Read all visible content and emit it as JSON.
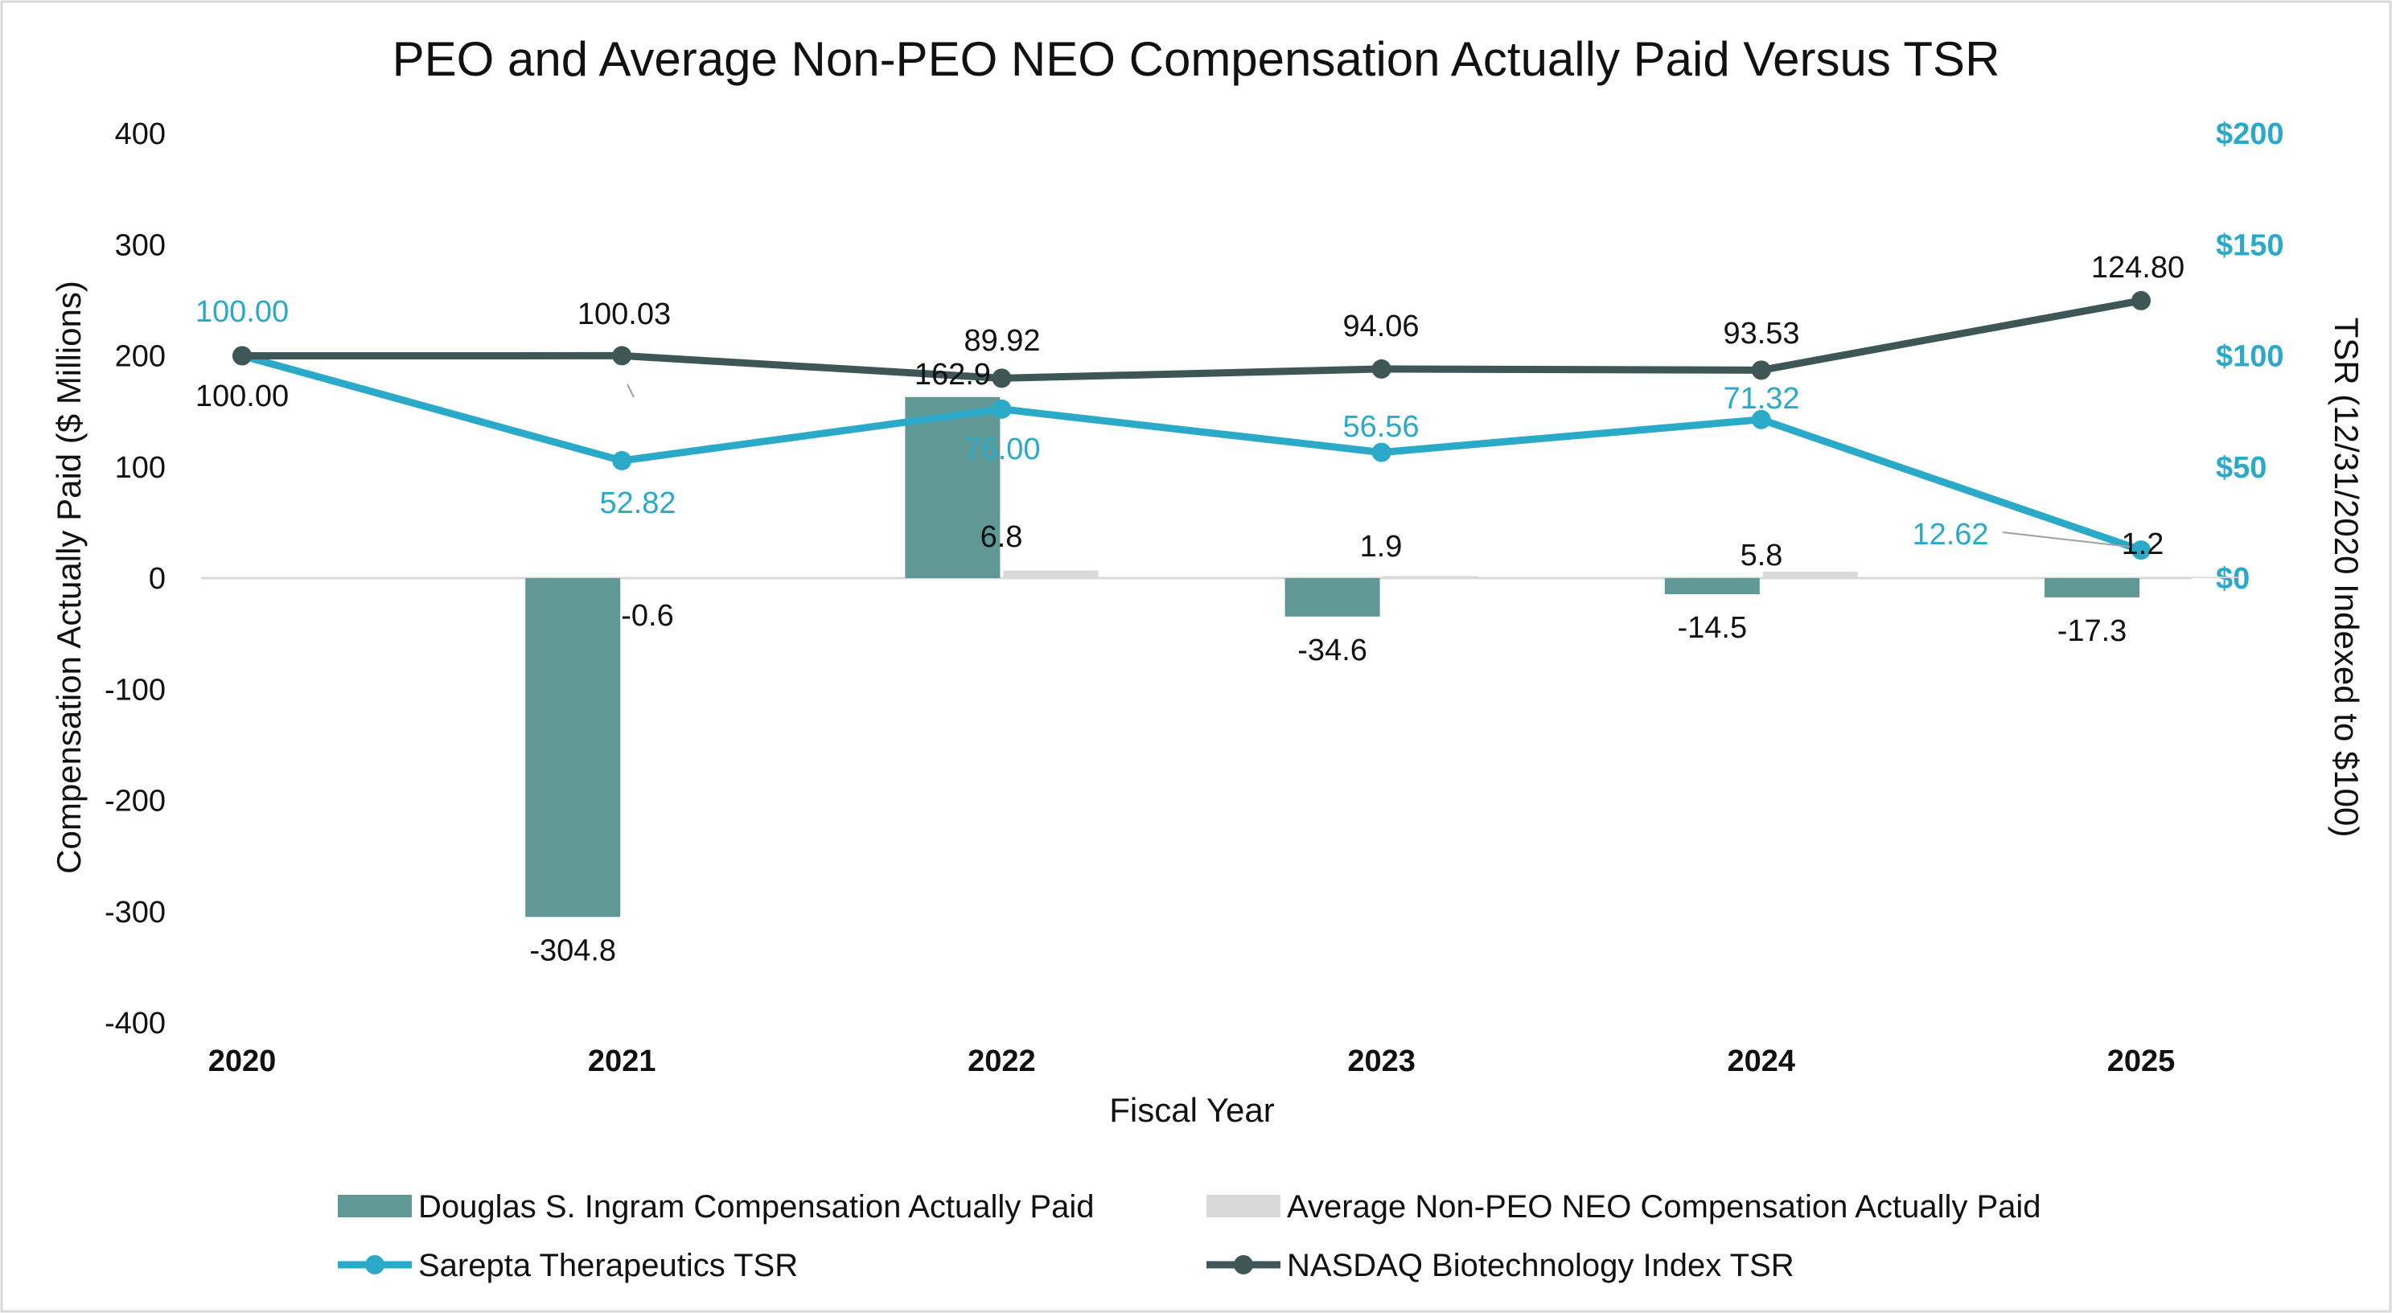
{
  "colors": {
    "peo_bar": "#5f9894",
    "neo_bar": "#d9d9d9",
    "sarepta_line": "#2aa9c8",
    "nasdaq_line": "#3e5656",
    "right_axis": "#2aa9c8",
    "frame": "#d9d9d9",
    "zero_line": "#d9d9d9"
  },
  "chart_data": {
    "type": "bar",
    "title": "PEO and Average Non-PEO NEO Compensation Actually Paid Versus TSR",
    "xlabel": "Fiscal Year",
    "ylabel": "Compensation Actually Paid ($ Millions)",
    "y2label": "TSR (12/31/2020 Indexed to $100)",
    "categories": [
      "2020",
      "2021",
      "2022",
      "2023",
      "2024",
      "2025"
    ],
    "ylim": [
      -400,
      400
    ],
    "yticks": [
      "400",
      "300",
      "200",
      "100",
      "0",
      "-100",
      "-200",
      "-300",
      "-400"
    ],
    "y2lim": [
      0,
      200
    ],
    "y2ticks": [
      "$200",
      "$150",
      "$100",
      "$50",
      "$0"
    ],
    "grid": false,
    "legend_position": "bottom",
    "series": [
      {
        "name": "Douglas S. Ingram Compensation Actually Paid",
        "type": "bar",
        "axis": "left",
        "values": [
          null,
          -304.8,
          162.9,
          -34.6,
          -14.5,
          -17.3
        ],
        "labels": [
          "",
          "-304.8",
          "162.9",
          "-34.6",
          "-14.5",
          "-17.3"
        ]
      },
      {
        "name": "Average Non-PEO NEO Compensation Actually Paid",
        "type": "bar",
        "axis": "left",
        "values": [
          null,
          -0.6,
          6.8,
          1.9,
          5.8,
          1.2
        ],
        "labels": [
          "",
          "-0.6",
          "6.8",
          "1.9",
          "5.8",
          "1.2"
        ]
      },
      {
        "name": "Sarepta Therapeutics TSR",
        "type": "line",
        "axis": "right",
        "values": [
          100.0,
          52.82,
          76.0,
          56.56,
          71.32,
          12.62
        ],
        "labels": [
          "100.00",
          "52.82",
          "76.00",
          "56.56",
          "71.32",
          "12.62"
        ]
      },
      {
        "name": "NASDAQ Biotechnology Index TSR",
        "type": "line",
        "axis": "right",
        "values": [
          100.0,
          100.03,
          89.92,
          94.06,
          93.53,
          124.8
        ],
        "labels": [
          "100.00",
          "100.03",
          "89.92",
          "94.06",
          "93.53",
          "124.80"
        ]
      }
    ]
  }
}
